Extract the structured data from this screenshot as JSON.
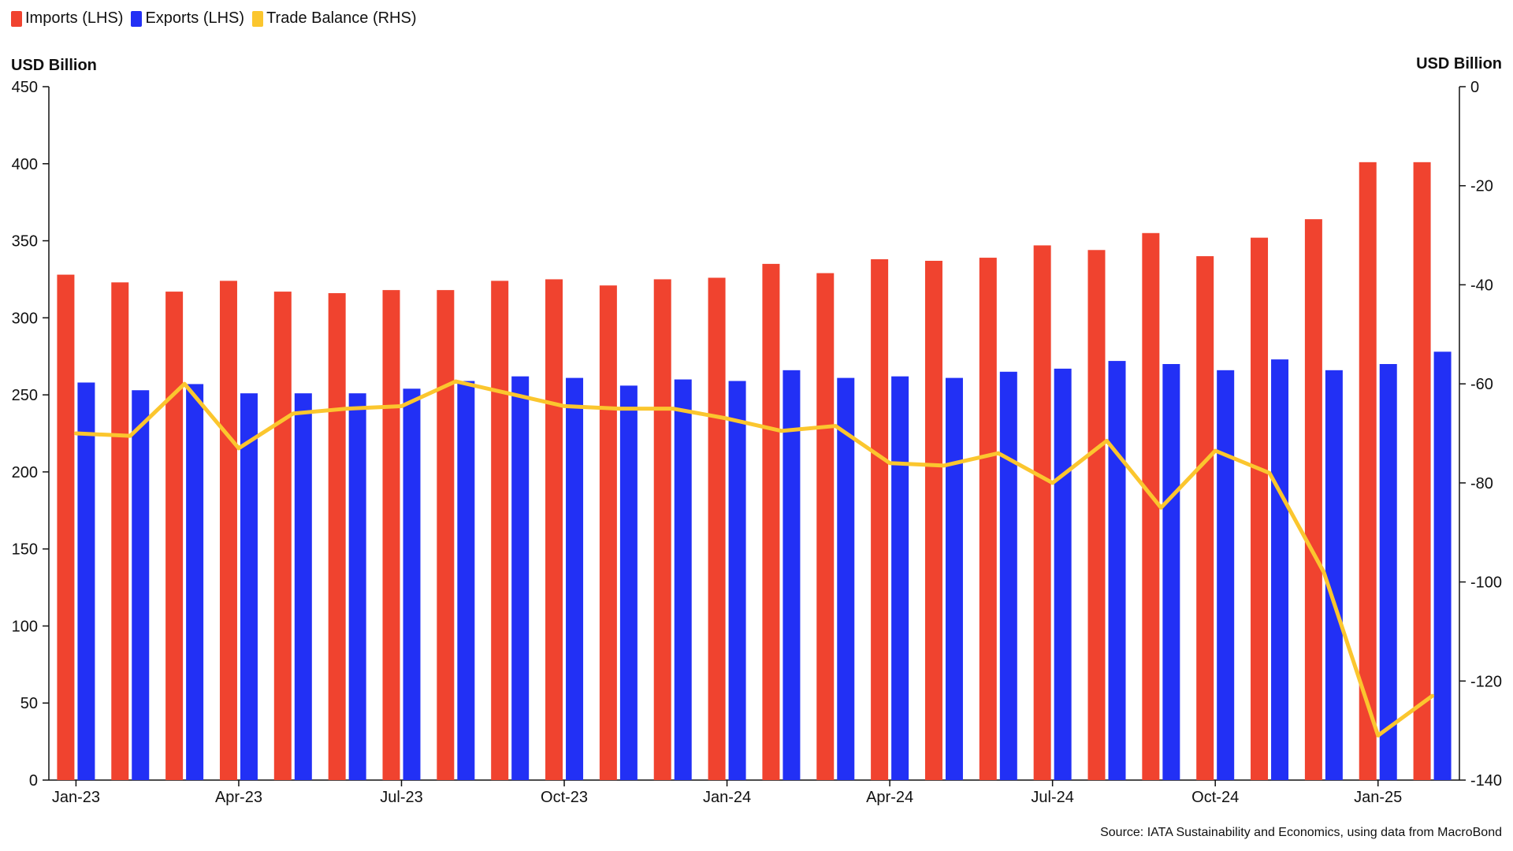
{
  "legend": {
    "imports": "Imports (LHS)",
    "exports": "Exports (LHS)",
    "balance": "Trade Balance (RHS)"
  },
  "axes": {
    "left_title": "USD Billion",
    "right_title": "USD Billion"
  },
  "source": "Source: IATA Sustainability and Economics, using data from MacroBond",
  "colors": {
    "imports": "#f0432f",
    "exports": "#2230f5",
    "balance": "#fbc62e",
    "axis": "#111111"
  },
  "chart_data": {
    "type": "bar",
    "categories": [
      "Jan-23",
      "Feb-23",
      "Mar-23",
      "Apr-23",
      "May-23",
      "Jun-23",
      "Jul-23",
      "Aug-23",
      "Sep-23",
      "Oct-23",
      "Nov-23",
      "Dec-23",
      "Jan-24",
      "Feb-24",
      "Mar-24",
      "Apr-24",
      "May-24",
      "Jun-24",
      "Jul-24",
      "Aug-24",
      "Sep-24",
      "Oct-24",
      "Nov-24",
      "Dec-24",
      "Jan-25",
      "Feb-25"
    ],
    "tick_labels": [
      "Jan-23",
      "Apr-23",
      "Jul-23",
      "Oct-23",
      "Jan-24",
      "Apr-24",
      "Jul-24",
      "Oct-24",
      "Jan-25"
    ],
    "series": [
      {
        "name": "Imports (LHS)",
        "axis": "left",
        "values": [
          328,
          323,
          317,
          324,
          317,
          316,
          318,
          318,
          324,
          325,
          321,
          325,
          326,
          335,
          329,
          338,
          337,
          339,
          347,
          344,
          355,
          340,
          352,
          364,
          401,
          401
        ]
      },
      {
        "name": "Exports (LHS)",
        "axis": "left",
        "values": [
          258,
          253,
          257,
          251,
          251,
          251,
          254,
          259,
          262,
          261,
          256,
          260,
          259,
          266,
          261,
          262,
          261,
          265,
          267,
          272,
          270,
          266,
          273,
          266,
          270,
          278
        ]
      },
      {
        "name": "Trade Balance (RHS)",
        "axis": "right",
        "type": "line",
        "values": [
          -70,
          -70.5,
          -60,
          -73,
          -66,
          -65,
          -64.5,
          -59.5,
          -62,
          -64.5,
          -65,
          -65,
          -67,
          -69.5,
          -68.5,
          -76,
          -76.5,
          -74,
          -80,
          -71.5,
          -85,
          -73.5,
          -78,
          -98,
          -131,
          -123
        ]
      }
    ],
    "left_axis": {
      "ylim": [
        0,
        450
      ],
      "ticks": [
        0,
        50,
        100,
        150,
        200,
        250,
        300,
        350,
        400,
        450
      ]
    },
    "right_axis": {
      "ylim": [
        -140,
        0
      ],
      "ticks": [
        0,
        -20,
        -40,
        -60,
        -80,
        -100,
        -120,
        -140
      ]
    }
  }
}
